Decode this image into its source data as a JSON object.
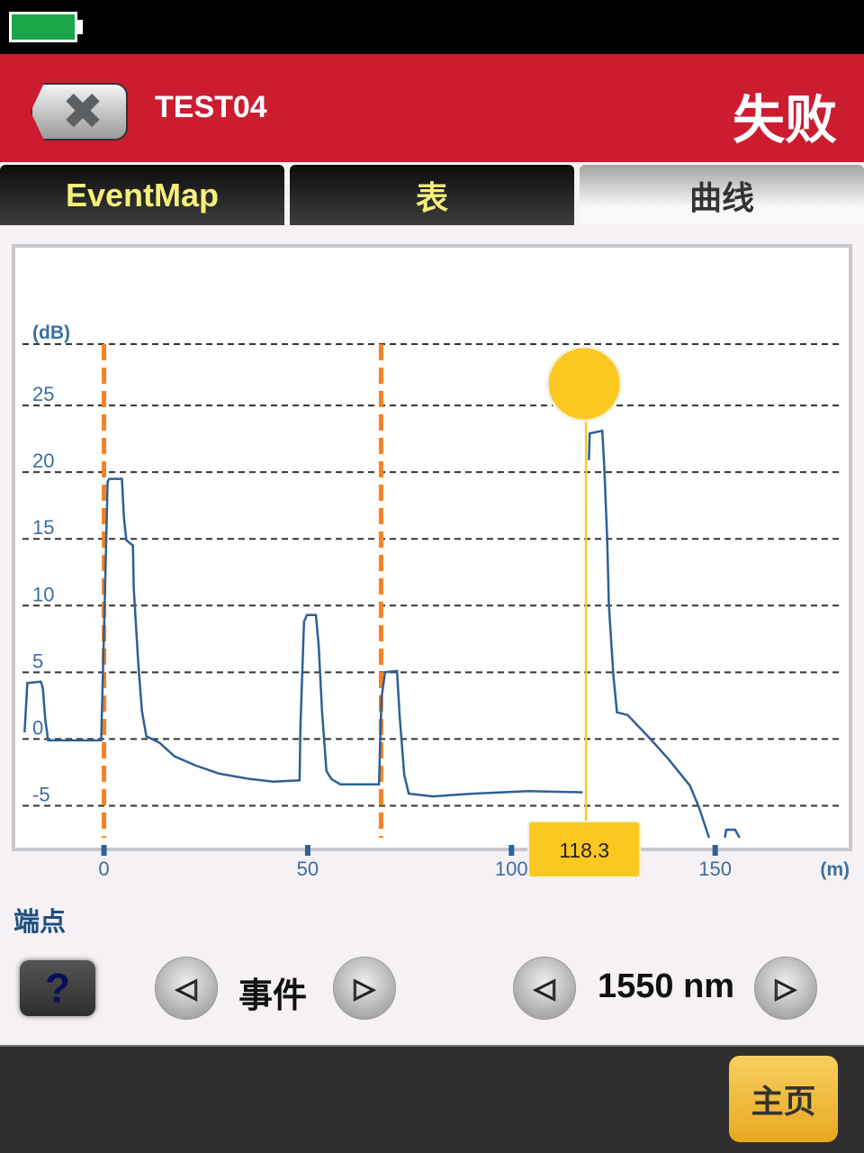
{
  "status_bar": {
    "battery_icon": "battery-full-icon",
    "battery_color": "#18a84a"
  },
  "header": {
    "close_icon": "close-x-icon",
    "title": "TEST04",
    "result": "失败",
    "background": "#cc1c30"
  },
  "tabs": [
    {
      "label": "EventMap",
      "active": false
    },
    {
      "label": "表",
      "active": false
    },
    {
      "label": "曲线",
      "active": true
    }
  ],
  "chart_data": {
    "type": "line",
    "ylabel": "(dB)",
    "xlabel": "(m)",
    "xlim": [
      -20,
      181
    ],
    "ylim": [
      -7.4,
      29.6
    ],
    "x_ticks": [
      "0",
      "50",
      "100",
      "150"
    ],
    "y_ticks": [
      "-5",
      "0",
      "5",
      "10",
      "15",
      "20",
      "25"
    ],
    "grid": true,
    "trace_color": "#2c6098",
    "series": [
      {
        "points": [
          [
            -19.5,
            0.5
          ],
          [
            -18.8,
            4.2
          ],
          [
            -15.5,
            4.3
          ],
          [
            -15.0,
            3.8
          ],
          [
            -14.4,
            1.4
          ],
          [
            -13.7,
            -0.1
          ],
          [
            -0.7,
            -0.1
          ],
          [
            0,
            7.9
          ],
          [
            0.9,
            19.3
          ],
          [
            1.3,
            19.5
          ],
          [
            4.4,
            19.5
          ],
          [
            4.9,
            16.6
          ],
          [
            5.5,
            14.9
          ],
          [
            7.1,
            14.5
          ],
          [
            7.3,
            11.3
          ],
          [
            8.4,
            5.7
          ],
          [
            9.3,
            2.1
          ],
          [
            10.4,
            0.2
          ],
          [
            13.7,
            -0.3
          ],
          [
            17.3,
            -1.3
          ],
          [
            22.6,
            -2.0
          ],
          [
            28.3,
            -2.6
          ],
          [
            35.8,
            -3.0
          ],
          [
            41.6,
            -3.2
          ],
          [
            48.0,
            -3.1
          ],
          [
            48.2,
            0.9
          ],
          [
            49.1,
            8.8
          ],
          [
            49.8,
            9.3
          ],
          [
            52.0,
            9.3
          ],
          [
            52.7,
            7.0
          ],
          [
            53.5,
            2.1
          ],
          [
            54.6,
            -2.4
          ],
          [
            55.8,
            -3.0
          ],
          [
            58.0,
            -3.4
          ],
          [
            67.5,
            -3.4
          ],
          [
            68.1,
            3.1
          ],
          [
            69.0,
            5.0
          ],
          [
            71.9,
            5.1
          ],
          [
            72.6,
            1.6
          ],
          [
            73.7,
            -2.7
          ],
          [
            74.8,
            -4.1
          ],
          [
            80.8,
            -4.3
          ],
          [
            90.3,
            -4.1
          ],
          [
            104.2,
            -3.9
          ],
          [
            117.5,
            -4.0
          ]
        ]
      },
      {
        "points": [
          [
            119.0,
            20.9
          ],
          [
            119.2,
            22.9
          ],
          [
            122.3,
            23.1
          ],
          [
            122.8,
            20.3
          ],
          [
            123.5,
            14.9
          ],
          [
            123.9,
            10.1
          ],
          [
            125.0,
            4.8
          ],
          [
            125.9,
            2.0
          ],
          [
            128.5,
            1.8
          ],
          [
            133.8,
            0.1
          ],
          [
            138.5,
            -1.5
          ],
          [
            143.8,
            -3.5
          ],
          [
            146.0,
            -5.1
          ],
          [
            148.5,
            -7.4
          ]
        ]
      },
      {
        "points": [
          [
            152.4,
            -7.4
          ],
          [
            152.7,
            -6.8
          ],
          [
            154.9,
            -6.8
          ],
          [
            156.0,
            -7.4
          ]
        ]
      }
    ],
    "event_markers": [
      0,
      68
    ],
    "marker_color": "#f58220",
    "cursor": {
      "x": 118.3,
      "label": "118.3",
      "color": "#fcc820"
    }
  },
  "controls": {
    "endpoint_label": "端点",
    "help_label": "?",
    "event_label": "事件",
    "wavelength_label": "1550 nm",
    "prev_icon": "triangle-left-icon",
    "next_icon": "triangle-right-icon"
  },
  "footer": {
    "home_label": "主页"
  }
}
